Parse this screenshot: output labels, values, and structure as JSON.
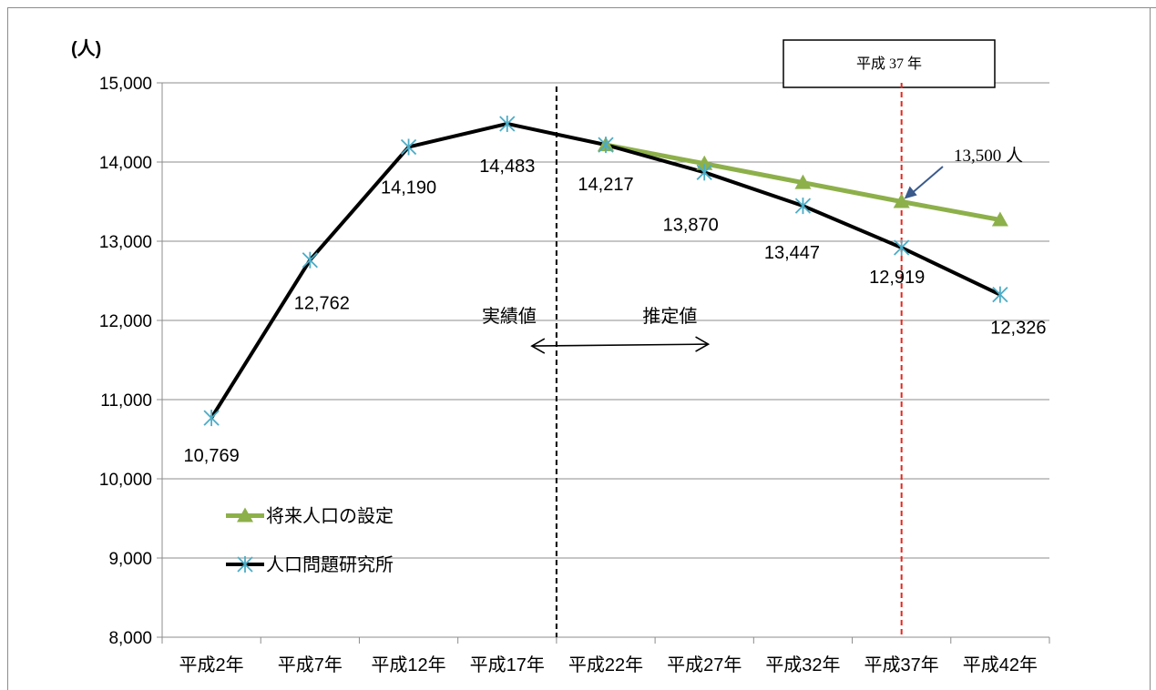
{
  "chart_data": {
    "type": "line",
    "title": "",
    "xlabel": "",
    "ylabel": "(人)",
    "ylim": [
      8000,
      15000
    ],
    "yticks": [
      8000,
      9000,
      10000,
      11000,
      12000,
      13000,
      14000,
      15000
    ],
    "ytick_labels": [
      "8,000",
      "9,000",
      "10,000",
      "11,000",
      "12,000",
      "13,000",
      "14,000",
      "15,000"
    ],
    "categories": [
      "平成2年",
      "平成7年",
      "平成12年",
      "平成17年",
      "平成22年",
      "平成27年",
      "平成32年",
      "平成37年",
      "平成42年"
    ],
    "grid": true,
    "legend_position": "bottom-left",
    "series": [
      {
        "name": "将来人口の設定",
        "color": "#8db04a",
        "marker": "triangle",
        "values": [
          null,
          null,
          null,
          null,
          14217,
          13980,
          13740,
          13500,
          13270
        ]
      },
      {
        "name": "人口問題研究所",
        "color": "#000000",
        "marker": "asterisk",
        "marker_color": "#4bacc6",
        "values": [
          10769,
          12762,
          14190,
          14483,
          14217,
          13870,
          13447,
          12919,
          12326
        ]
      }
    ],
    "data_labels": [
      "10,769",
      "12,762",
      "14,190",
      "14,483",
      "14,217",
      "13,870",
      "13,447",
      "12,919",
      "12,326"
    ],
    "annotations": {
      "actual_label": "実績値",
      "estimate_label": "推定値",
      "target_box": "平成 37 年",
      "target_value": "13,500 人",
      "divider_category": "平成22年",
      "target_category": "平成37年",
      "divider_color": "#000000",
      "target_line_color": "#e8261c",
      "arrow_color": "#3a5a8c"
    }
  }
}
